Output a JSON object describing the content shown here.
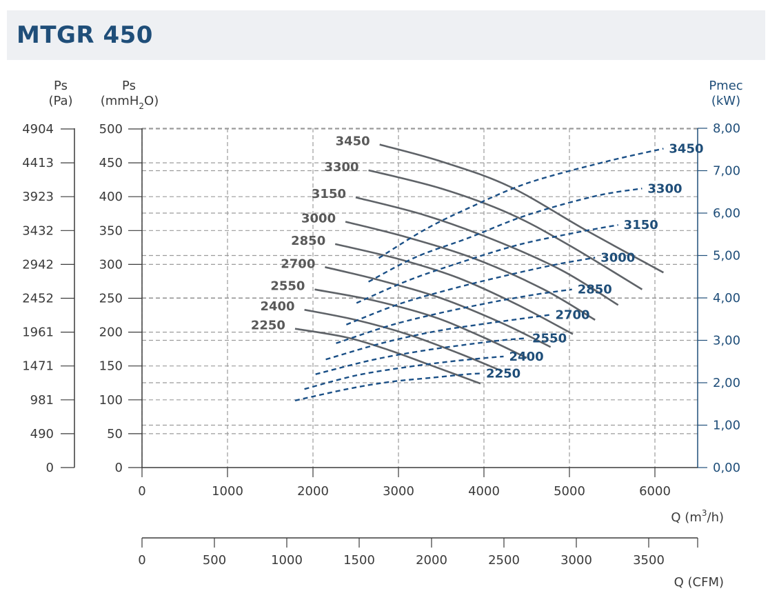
{
  "header": {
    "title": "MTGR 450"
  },
  "chart_data": {
    "type": "line",
    "title": "MTGR 450",
    "left_axis_pa": {
      "label": "Ps",
      "unit": "(Pa)",
      "ticks": [
        "4904",
        "4413",
        "3923",
        "3432",
        "2942",
        "2452",
        "1961",
        "1471",
        "981",
        "490",
        "0"
      ]
    },
    "left_axis_mmh2o": {
      "label": "Ps",
      "unit_prefix": "(mmH",
      "unit_sub": "2",
      "unit_suffix": "O)",
      "ticks": [
        "500",
        "450",
        "400",
        "350",
        "300",
        "250",
        "200",
        "150",
        "100",
        "50",
        "0"
      ],
      "ylim": [
        0,
        500
      ]
    },
    "right_axis": {
      "label": "Pmec",
      "unit": "(kW)",
      "ticks": [
        "8,00",
        "7,00",
        "6,00",
        "5,00",
        "4,00",
        "3,00",
        "2,00",
        "1,00",
        "0,00"
      ],
      "ylim": [
        0,
        8
      ]
    },
    "x_axis_m3h": {
      "label_prefix": "Q (m",
      "label_sup": "3",
      "label_suffix": "/h)",
      "ticks": [
        "0",
        "1000",
        "2000",
        "3000",
        "4000",
        "5000",
        "6000"
      ],
      "xlim": [
        0,
        6500
      ]
    },
    "x_axis_cfm": {
      "label": "Q (CFM)",
      "ticks": [
        "0",
        "500",
        "1000",
        "1500",
        "2000",
        "2500",
        "3000",
        "3500"
      ],
      "xlim": [
        0,
        3826
      ]
    },
    "grid": true,
    "pressure_series": [
      {
        "name": "3450",
        "x": [
          2780,
          3500,
          4300,
          5200,
          6100
        ],
        "y": [
          477,
          452,
          415,
          350,
          288
        ]
      },
      {
        "name": "3300",
        "x": [
          2650,
          3500,
          4300,
          5000,
          5850
        ],
        "y": [
          439,
          412,
          375,
          328,
          263
        ]
      },
      {
        "name": "3150",
        "x": [
          2500,
          3300,
          4100,
          4900,
          5570
        ],
        "y": [
          399,
          373,
          337,
          292,
          240
        ]
      },
      {
        "name": "3000",
        "x": [
          2380,
          3100,
          3900,
          4700,
          5300
        ],
        "y": [
          363,
          340,
          308,
          263,
          218
        ]
      },
      {
        "name": "2850",
        "x": [
          2260,
          3000,
          3700,
          4400,
          5040
        ],
        "y": [
          330,
          308,
          280,
          240,
          197
        ]
      },
      {
        "name": "2700",
        "x": [
          2140,
          2800,
          3500,
          4200,
          4780
        ],
        "y": [
          296,
          276,
          250,
          214,
          178
        ]
      },
      {
        "name": "2550",
        "x": [
          2020,
          2700,
          3400,
          4000,
          4500
        ],
        "y": [
          263,
          247,
          223,
          192,
          162
        ]
      },
      {
        "name": "2400",
        "x": [
          1900,
          2500,
          3100,
          3700,
          4220
        ],
        "y": [
          233,
          218,
          197,
          169,
          142
        ]
      },
      {
        "name": "2250",
        "x": [
          1790,
          2400,
          2900,
          3400,
          3960
        ],
        "y": [
          205,
          192,
          173,
          150,
          124
        ]
      }
    ],
    "power_series": [
      {
        "name": "3450",
        "x": [
          2770,
          3300,
          3800,
          4500,
          5400,
          6100
        ],
        "y": [
          4.94,
          5.6,
          6.1,
          6.7,
          7.2,
          7.52
        ]
      },
      {
        "name": "3300",
        "x": [
          2650,
          3200,
          3800,
          4500,
          5300,
          5850
        ],
        "y": [
          4.38,
          4.96,
          5.4,
          5.95,
          6.4,
          6.58
        ]
      },
      {
        "name": "3150",
        "x": [
          2510,
          3100,
          3700,
          4400,
          5100,
          5570
        ],
        "y": [
          3.88,
          4.4,
          4.82,
          5.25,
          5.55,
          5.72
        ]
      },
      {
        "name": "3000",
        "x": [
          2390,
          3000,
          3600,
          4200,
          4800,
          5300
        ],
        "y": [
          3.37,
          3.85,
          4.2,
          4.5,
          4.77,
          4.95
        ]
      },
      {
        "name": "2850",
        "x": [
          2270,
          2900,
          3500,
          4100,
          4600,
          5030
        ],
        "y": [
          2.93,
          3.35,
          3.65,
          3.9,
          4.08,
          4.2
        ]
      },
      {
        "name": "2700",
        "x": [
          2150,
          2800,
          3400,
          3900,
          4400,
          4770
        ],
        "y": [
          2.55,
          2.93,
          3.2,
          3.36,
          3.5,
          3.6
        ]
      },
      {
        "name": "2550",
        "x": [
          2030,
          2700,
          3300,
          3800,
          4200,
          4500
        ],
        "y": [
          2.2,
          2.54,
          2.76,
          2.9,
          3.0,
          3.05
        ]
      },
      {
        "name": "2400",
        "x": [
          1900,
          2500,
          3100,
          3600,
          4000,
          4230
        ],
        "y": [
          1.85,
          2.17,
          2.37,
          2.5,
          2.58,
          2.62
        ]
      },
      {
        "name": "2250",
        "x": [
          1790,
          2400,
          2900,
          3400,
          3800,
          3960
        ],
        "y": [
          1.58,
          1.85,
          2.02,
          2.12,
          2.2,
          2.22
        ]
      }
    ],
    "colors": {
      "pressure": "#5f6368",
      "power": "#1a4f86",
      "grid": "#9b9b9b",
      "axis": "#3a3a3a",
      "right_axis": "#1f4e79"
    }
  }
}
